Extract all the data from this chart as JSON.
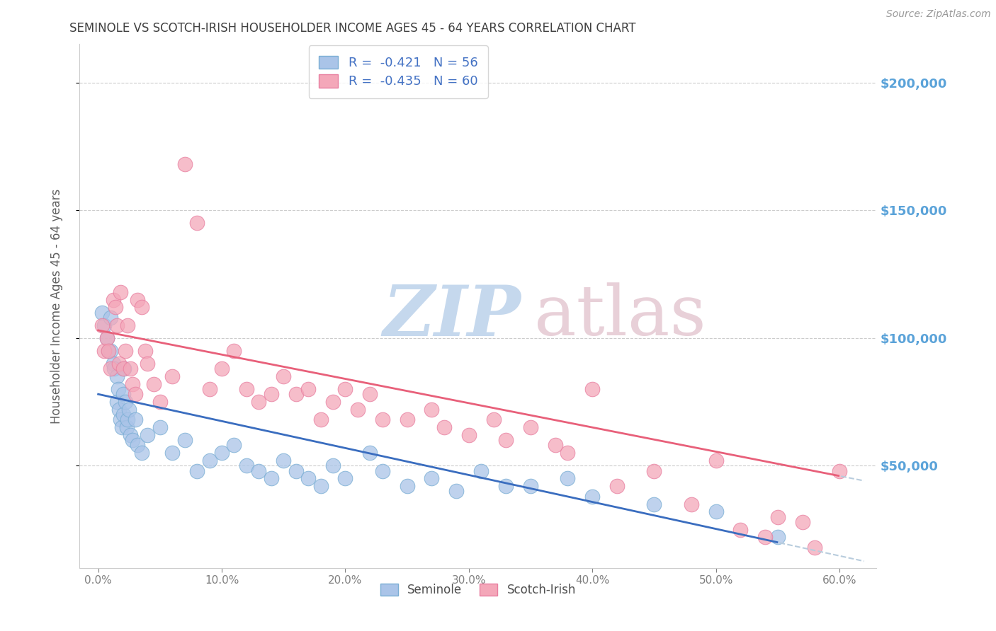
{
  "title": "SEMINOLE VS SCOTCH-IRISH HOUSEHOLDER INCOME AGES 45 - 64 YEARS CORRELATION CHART",
  "source": "Source: ZipAtlas.com",
  "ylabel": "Householder Income Ages 45 - 64 years",
  "xlabel_ticks": [
    "0.0%",
    "10.0%",
    "20.0%",
    "30.0%",
    "40.0%",
    "50.0%",
    "60.0%"
  ],
  "xlabel_vals": [
    0.0,
    10.0,
    20.0,
    30.0,
    40.0,
    50.0,
    60.0
  ],
  "ytick_labels": [
    "$200,000",
    "$150,000",
    "$100,000",
    "$50,000"
  ],
  "ytick_vals": [
    200000,
    150000,
    100000,
    50000
  ],
  "ylim": [
    10000,
    215000
  ],
  "xlim": [
    -1.5,
    63.0
  ],
  "seminole_color": "#aac4e8",
  "scotchirish_color": "#f4a7b9",
  "seminole_edge": "#7aaed4",
  "scotchirish_edge": "#e87fa0",
  "seminole_line_color": "#3a6dbf",
  "scotchirish_line_color": "#e8607a",
  "dashed_color": "#b8ccdd",
  "legend_text_color": "#4472c4",
  "watermark": "ZIPatlas",
  "watermark_zip_color": "#c8d8e8",
  "watermark_atlas_color": "#d8c8c8",
  "background_color": "#ffffff",
  "grid_color": "#cccccc",
  "title_color": "#404040",
  "yaxis_label_color": "#606060",
  "right_ytick_color": "#5ba3d9",
  "legend_box_color": "#ffffff",
  "sem_line_x0": 0,
  "sem_line_y0": 78000,
  "sem_line_x1": 55,
  "sem_line_y1": 20000,
  "sci_line_x0": 0,
  "sci_line_y0": 103000,
  "sci_line_x1": 60,
  "sci_line_y1": 46000,
  "seminole_x": [
    0.3,
    0.5,
    0.7,
    0.8,
    1.0,
    1.0,
    1.2,
    1.3,
    1.5,
    1.5,
    1.6,
    1.7,
    1.8,
    1.9,
    2.0,
    2.0,
    2.1,
    2.2,
    2.3,
    2.4,
    2.5,
    2.6,
    2.8,
    3.0,
    3.2,
    3.5,
    4.0,
    5.0,
    6.0,
    7.0,
    8.0,
    9.0,
    10.0,
    11.0,
    12.0,
    13.0,
    14.0,
    15.0,
    16.0,
    17.0,
    18.0,
    19.0,
    20.0,
    22.0,
    23.0,
    25.0,
    27.0,
    29.0,
    31.0,
    33.0,
    35.0,
    38.0,
    40.0,
    45.0,
    50.0,
    55.0
  ],
  "seminole_y": [
    110000,
    105000,
    100000,
    95000,
    108000,
    95000,
    90000,
    88000,
    85000,
    75000,
    80000,
    72000,
    68000,
    65000,
    78000,
    70000,
    88000,
    75000,
    65000,
    68000,
    72000,
    62000,
    60000,
    68000,
    58000,
    55000,
    62000,
    65000,
    55000,
    60000,
    48000,
    52000,
    55000,
    58000,
    50000,
    48000,
    45000,
    52000,
    48000,
    45000,
    42000,
    50000,
    45000,
    55000,
    48000,
    42000,
    45000,
    40000,
    48000,
    42000,
    42000,
    45000,
    38000,
    35000,
    32000,
    22000
  ],
  "scotchirish_x": [
    0.3,
    0.5,
    0.7,
    0.8,
    1.0,
    1.2,
    1.4,
    1.5,
    1.7,
    1.8,
    2.0,
    2.2,
    2.4,
    2.6,
    2.8,
    3.0,
    3.2,
    3.5,
    3.8,
    4.0,
    4.5,
    5.0,
    6.0,
    7.0,
    8.0,
    9.0,
    10.0,
    11.0,
    12.0,
    13.0,
    14.0,
    15.0,
    16.0,
    17.0,
    18.0,
    19.0,
    20.0,
    21.0,
    22.0,
    23.0,
    25.0,
    27.0,
    28.0,
    30.0,
    32.0,
    33.0,
    35.0,
    37.0,
    38.0,
    40.0,
    42.0,
    45.0,
    48.0,
    50.0,
    52.0,
    54.0,
    55.0,
    57.0,
    58.0,
    60.0
  ],
  "scotchirish_y": [
    105000,
    95000,
    100000,
    95000,
    88000,
    115000,
    112000,
    105000,
    90000,
    118000,
    88000,
    95000,
    105000,
    88000,
    82000,
    78000,
    115000,
    112000,
    95000,
    90000,
    82000,
    75000,
    85000,
    168000,
    145000,
    80000,
    88000,
    95000,
    80000,
    75000,
    78000,
    85000,
    78000,
    80000,
    68000,
    75000,
    80000,
    72000,
    78000,
    68000,
    68000,
    72000,
    65000,
    62000,
    68000,
    60000,
    65000,
    58000,
    55000,
    80000,
    42000,
    48000,
    35000,
    52000,
    25000,
    22000,
    30000,
    28000,
    18000,
    48000
  ]
}
